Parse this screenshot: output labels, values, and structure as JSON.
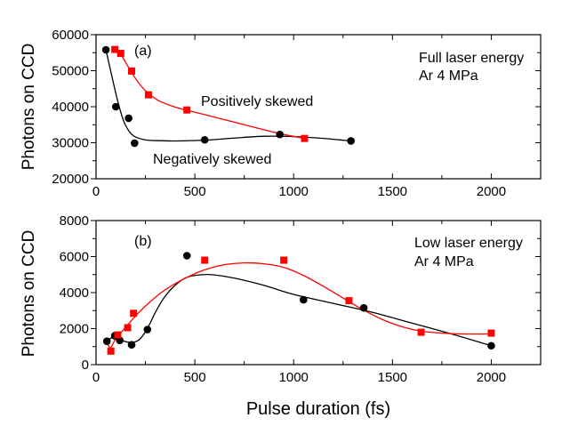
{
  "chart_data": [
    {
      "type": "scatter",
      "panel_label": "(a)",
      "xlabel": "",
      "ylabel": "Photons on CCD",
      "xlim": [
        0,
        2250
      ],
      "ylim": [
        20000,
        60000
      ],
      "xticks": [
        0,
        500,
        1000,
        1500,
        2000
      ],
      "xtick_labels": [
        "0",
        "500",
        "1000",
        "1500",
        "2000"
      ],
      "yticks": [
        20000,
        30000,
        40000,
        50000,
        60000
      ],
      "ytick_labels": [
        "20000",
        "30000",
        "40000",
        "50000",
        "60000"
      ],
      "annotations": {
        "condition_line1": "Full laser energy",
        "condition_line2": "Ar 4 MPa",
        "positive_label": "Positively skewed",
        "negative_label": "Negatively skewed"
      },
      "series": [
        {
          "name": "Negatively skewed",
          "color": "#000000",
          "marker": "circle",
          "x": [
            50,
            100,
            165,
            195,
            550,
            930,
            1290
          ],
          "y": [
            55800,
            40000,
            36800,
            29900,
            30800,
            32300,
            30500
          ],
          "fit_x": [
            50,
            80,
            110,
            140,
            170,
            200,
            250,
            300,
            400,
            550,
            700,
            850,
            1000,
            1150,
            1290
          ],
          "fit_y": [
            55800,
            48500,
            41500,
            36000,
            33000,
            31600,
            30800,
            30600,
            30500,
            30700,
            31300,
            31800,
            31700,
            31200,
            30500
          ]
        },
        {
          "name": "Positively skewed",
          "color": "#ff0000",
          "marker": "square",
          "x": [
            95,
            125,
            180,
            265,
            460,
            1055
          ],
          "y": [
            55900,
            54800,
            49900,
            43300,
            39100,
            31200
          ],
          "fit_x": [
            95,
            125,
            150,
            180,
            220,
            265,
            320,
            400,
            460,
            550,
            650,
            750,
            850,
            950,
            1055
          ],
          "fit_y": [
            55900,
            54500,
            52300,
            49500,
            46300,
            43700,
            41600,
            39900,
            39000,
            37800,
            36400,
            35000,
            33600,
            32300,
            31200
          ]
        }
      ]
    },
    {
      "type": "scatter",
      "panel_label": "(b)",
      "xlabel": "Pulse duration (fs)",
      "ylabel": "Photons on CCD",
      "xlim": [
        0,
        2250
      ],
      "ylim": [
        0,
        8000
      ],
      "xticks": [
        0,
        500,
        1000,
        1500,
        2000
      ],
      "xtick_labels": [
        "0",
        "500",
        "1000",
        "1500",
        "2000"
      ],
      "yticks": [
        0,
        2000,
        4000,
        6000,
        8000
      ],
      "ytick_labels": [
        "0",
        "2000",
        "4000",
        "6000",
        "8000"
      ],
      "annotations": {
        "condition_line1": "Low laser energy",
        "condition_line2": "Ar 4 MPa"
      },
      "series": [
        {
          "name": "Black (circles)",
          "color": "#000000",
          "marker": "circle",
          "x": [
            55,
            95,
            120,
            180,
            260,
            460,
            1050,
            1355,
            2000
          ],
          "y": [
            1300,
            1600,
            1350,
            1100,
            1950,
            6050,
            3600,
            3150,
            1050
          ],
          "fit_x": [
            55,
            80,
            100,
            130,
            160,
            190,
            220,
            260,
            300,
            350,
            400,
            450,
            500,
            580,
            700,
            850,
            1000,
            1200,
            1400,
            1600,
            1800,
            2000
          ],
          "fit_y": [
            1300,
            1500,
            1500,
            1350,
            1250,
            1250,
            1400,
            2000,
            2900,
            3800,
            4400,
            4800,
            4950,
            5000,
            4800,
            4400,
            3900,
            3400,
            2900,
            2300,
            1700,
            1050
          ]
        },
        {
          "name": "Red (squares)",
          "color": "#ff0000",
          "marker": "square",
          "x": [
            75,
            110,
            160,
            190,
            550,
            950,
            1280,
            1645,
            2000
          ],
          "y": [
            750,
            1650,
            2050,
            2850,
            5800,
            5800,
            3550,
            1800,
            1750
          ],
          "fit_x": [
            60,
            75,
            95,
            120,
            160,
            200,
            260,
            330,
            400,
            480,
            560,
            650,
            750,
            850,
            950,
            1050,
            1150,
            1250,
            1350,
            1450,
            1550,
            1650,
            1750,
            1850,
            2000
          ],
          "fit_y": [
            1100,
            950,
            1350,
            1700,
            2200,
            2700,
            3350,
            4000,
            4500,
            4950,
            5300,
            5550,
            5650,
            5600,
            5400,
            4950,
            4350,
            3700,
            3050,
            2500,
            2100,
            1850,
            1750,
            1700,
            1700
          ]
        }
      ]
    }
  ]
}
